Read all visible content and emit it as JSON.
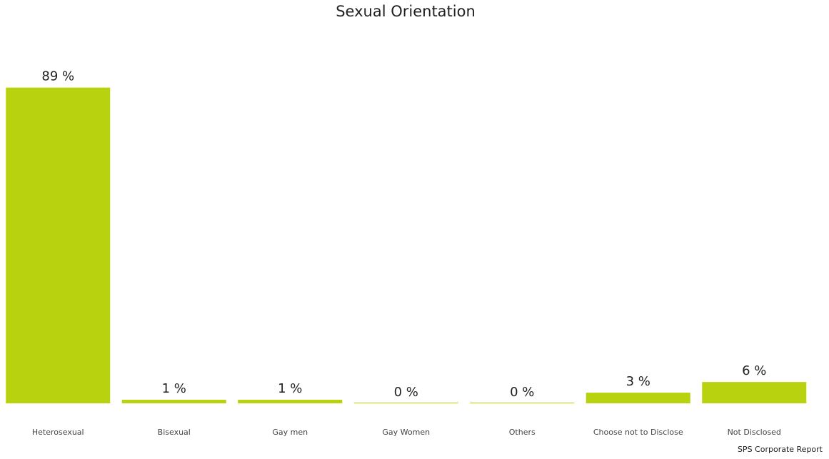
{
  "chart_data": {
    "type": "bar",
    "title": "Sexual Orientation",
    "categories": [
      "Heterosexual",
      "Bisexual",
      "Gay men",
      "Gay Women",
      "Others",
      "Choose not to Disclose",
      "Not Disclosed"
    ],
    "values": [
      89,
      1,
      1,
      0,
      0,
      3,
      6
    ],
    "value_labels": [
      "89 %",
      "1 %",
      "1 %",
      "0 %",
      "0 %",
      "3 %",
      "6 %"
    ],
    "color": "#b8d20f",
    "ylim": [
      0,
      100
    ],
    "source": "SPS Corporate Report"
  }
}
